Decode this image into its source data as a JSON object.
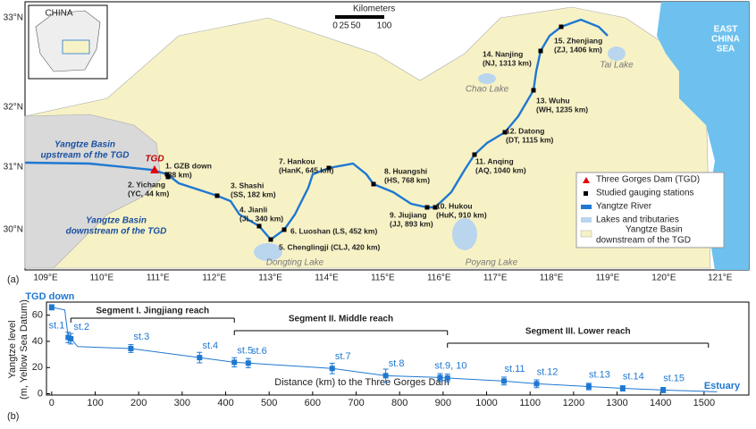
{
  "map": {
    "panel_label": "(a)",
    "lon_labels": [
      "109°E",
      "110°E",
      "111°E",
      "112°E",
      "113°E",
      "114°E",
      "115°E",
      "116°E",
      "117°E",
      "118°E",
      "119°E",
      "120°E",
      "121°E"
    ],
    "lat_labels": [
      "33°N",
      "32°N",
      "31°N",
      "30°N"
    ],
    "inset_label": "CHINA",
    "scale": {
      "title": "Kilometers",
      "ticks": [
        "0",
        "25",
        "50",
        "100"
      ]
    },
    "sea_label": [
      "EAST",
      "CHINA",
      "SEA"
    ],
    "lakes": [
      "Tai Lake",
      "Chao Lake",
      "Dongting Lake",
      "Poyang Lake"
    ],
    "tgd_label": "TGD",
    "upstream_label": [
      "Yangtze Basin",
      "upstream of the TGD"
    ],
    "downstream_label": [
      "Yangtze Basin",
      "downstream of the TGD"
    ],
    "stations": [
      {
        "lines": [
          "1. GZB down",
          "(38 km)"
        ]
      },
      {
        "lines": [
          "2. Yichang",
          "(YC, 44 km)"
        ]
      },
      {
        "lines": [
          "3. Shashi",
          "(SS, 182 km)"
        ]
      },
      {
        "lines": [
          "4. Jianli",
          "(JL, 340 km)"
        ]
      },
      {
        "lines": [
          "5. Chenglingji (CLJ, 420 km)"
        ]
      },
      {
        "lines": [
          "6. Luoshan (LS, 452 km)"
        ]
      },
      {
        "lines": [
          "7. Hankou",
          "(HanK, 645 km)"
        ]
      },
      {
        "lines": [
          "8. Huangshi",
          "(HS, 768 km)"
        ]
      },
      {
        "lines": [
          "9. Jiujiang",
          "(JJ, 893 km)"
        ]
      },
      {
        "lines": [
          "10. Hukou",
          "(HuK, 910 km)"
        ]
      },
      {
        "lines": [
          "11. Anqing",
          "(AQ, 1040 km)"
        ]
      },
      {
        "lines": [
          "12. Datong",
          "(DT, 1115 km)"
        ]
      },
      {
        "lines": [
          "13. Wuhu",
          "(WH, 1235 km)"
        ]
      },
      {
        "lines": [
          "14. Nanjing",
          "(NJ, 1313 km)"
        ]
      },
      {
        "lines": [
          "15. Zhenjiang",
          "(ZJ, 1406 km)"
        ]
      }
    ],
    "legend": [
      "Three Gorges Dam (TGD)",
      "Studied gauging stations",
      "Yangtze River",
      "Lakes and tributaries",
      "Yangtze Basin",
      "downstream of the TGD"
    ]
  },
  "chart_data": {
    "type": "scatter",
    "panel_label": "(b)",
    "xlabel": "Distance (km) to the Three Gorges Dam",
    "ylabel": [
      "Yangtze level",
      "(m, Yellow Sea Datum)"
    ],
    "xlim": [
      -12,
      1603
    ],
    "ylim": [
      -1,
      70
    ],
    "xticks": [
      0,
      100,
      200,
      300,
      400,
      500,
      600,
      700,
      800,
      900,
      1000,
      1100,
      1200,
      1300,
      1400,
      1500
    ],
    "yticks": [
      0,
      20,
      40,
      60
    ],
    "series": [
      {
        "color": "#1f78d1",
        "x": [
          0,
          38,
          44,
          182,
          340,
          420,
          452,
          645,
          768,
          893,
          910,
          1040,
          1115,
          1235,
          1313,
          1406
        ],
        "values": [
          66,
          43,
          42,
          34.5,
          27.6,
          24,
          23.4,
          19.3,
          13.8,
          12.4,
          12,
          9.7,
          7.6,
          5.5,
          4.1,
          2.8
        ],
        "errors": [
          2,
          4,
          4,
          3,
          4,
          3.5,
          3.5,
          4,
          5,
          3,
          3,
          3,
          3,
          2.5,
          2,
          2
        ],
        "labels": [
          "TGD down",
          "st.1",
          "st.2",
          "st.3",
          "st.4",
          "st.5",
          "st.6",
          "st.7",
          "st.8",
          "st.9, 10",
          null,
          "st.11",
          "st.12",
          "st.13",
          "st.14",
          "st.15"
        ]
      },
      {
        "color": "#1f78d1",
        "style": "line",
        "x": [
          0,
          30,
          38,
          44,
          60,
          182,
          340,
          420,
          452,
          645,
          768,
          893,
          910,
          1040,
          1115,
          1235,
          1313,
          1406,
          1530
        ],
        "values": [
          66,
          64,
          43,
          42,
          36,
          34.5,
          27.6,
          24,
          23.4,
          19.3,
          13.8,
          12.4,
          12,
          9.7,
          7.6,
          5.5,
          4.1,
          2.8,
          1.5
        ]
      }
    ],
    "annotation": "Estuary",
    "segments": [
      {
        "label": "Segment I.  Jingjiang reach",
        "start": 44,
        "end": 420
      },
      {
        "label": "Segment II.  Middle reach",
        "start": 420,
        "end": 910
      },
      {
        "label": "Segment III.  Lower reach",
        "start": 910,
        "end": 1510
      }
    ]
  }
}
